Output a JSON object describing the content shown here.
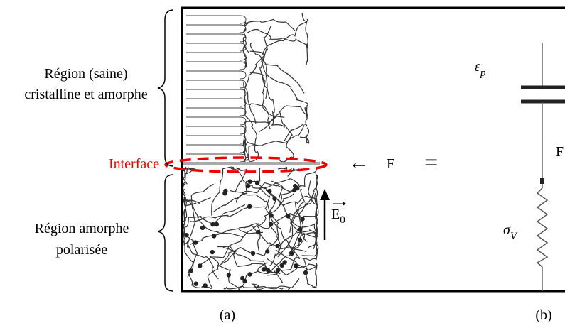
{
  "figure_a": {
    "upper_region": [
      "Région (saine)",
      "cristalline et amorphe"
    ],
    "interface": "Interface",
    "lower_region": [
      "Région amorphe",
      "polarisée"
    ],
    "field": {
      "symbol": "E",
      "subscript": "0"
    },
    "arrow": "←",
    "force": "F",
    "equals": "=",
    "caption": "(a)"
  },
  "figure_b": {
    "capacitor": {
      "symbol": "ε",
      "subscript": "p"
    },
    "node": "F",
    "resistor": {
      "symbol": "σ",
      "subscript": "V"
    },
    "caption": "(b)"
  }
}
